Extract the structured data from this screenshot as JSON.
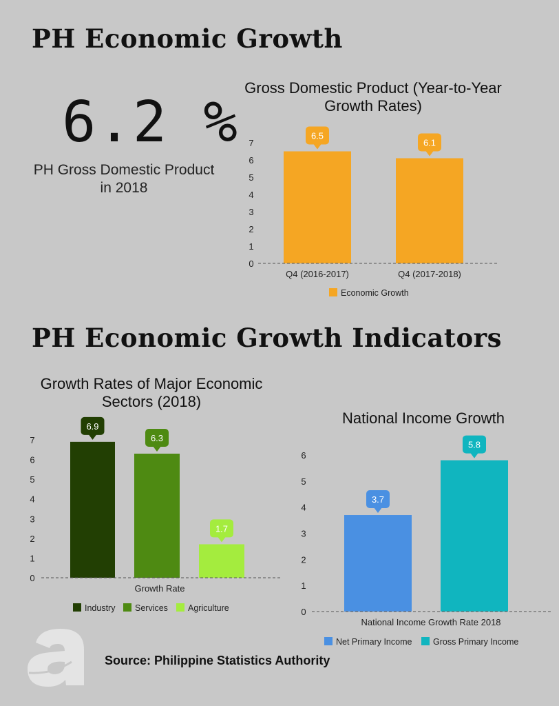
{
  "header": {
    "title": "PH Economic Growth"
  },
  "highlight": {
    "value": "6.2 %",
    "caption": "PH Gross Domestic Product in 2018"
  },
  "section2": {
    "title": "PH Economic Growth Indicators"
  },
  "source": "Source: Philippine Statistics Authority",
  "logo": {
    "text": "a"
  },
  "chart_data": [
    {
      "type": "bar",
      "title": "Gross Domestic Product (Year-to-Year Growth Rates)",
      "categories": [
        "Q4 (2016-2017)",
        "Q4 (2017-2018)"
      ],
      "series": [
        {
          "name": "Economic Growth",
          "values": [
            6.5,
            6.1
          ],
          "color": "#F5A623"
        }
      ],
      "ylim": [
        0,
        7
      ],
      "yticks": [
        "0",
        "1",
        "2",
        "3",
        "4",
        "5",
        "6",
        "7"
      ],
      "grid": false,
      "legend": "bottom",
      "data_labels": true
    },
    {
      "type": "bar",
      "title": "Growth Rates of Major Economic Sectors (2018)",
      "categories": [
        "Growth Rate"
      ],
      "series": [
        {
          "name": "Industry",
          "values": [
            6.9
          ],
          "color": "#223F03"
        },
        {
          "name": "Services",
          "values": [
            6.3
          ],
          "color": "#4E8A12"
        },
        {
          "name": "Agriculture",
          "values": [
            1.7
          ],
          "color": "#A4EC3E"
        }
      ],
      "ylim": [
        0,
        7
      ],
      "yticks": [
        "0",
        "1",
        "2",
        "3",
        "4",
        "5",
        "6",
        "7"
      ],
      "grid": false,
      "legend": "bottom",
      "data_labels": true
    },
    {
      "type": "bar",
      "title": "National Income Growth",
      "categories": [
        "National Income Growth Rate 2018"
      ],
      "series": [
        {
          "name": "Net Primary Income",
          "values": [
            3.7
          ],
          "color": "#4A90E2"
        },
        {
          "name": "Gross Primary Income",
          "values": [
            5.8
          ],
          "color": "#10B5BF"
        }
      ],
      "ylim": [
        0,
        6
      ],
      "yticks": [
        "0",
        "1",
        "2",
        "3",
        "4",
        "5",
        "6"
      ],
      "grid": false,
      "legend": "bottom",
      "data_labels": true
    }
  ]
}
